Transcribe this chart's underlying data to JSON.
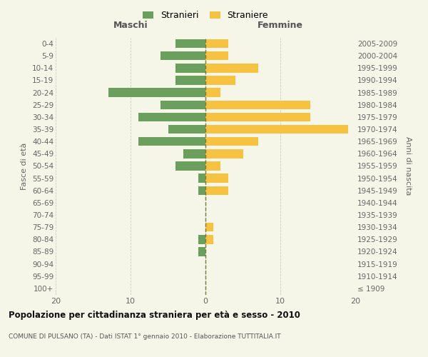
{
  "age_groups": [
    "100+",
    "95-99",
    "90-94",
    "85-89",
    "80-84",
    "75-79",
    "70-74",
    "65-69",
    "60-64",
    "55-59",
    "50-54",
    "45-49",
    "40-44",
    "35-39",
    "30-34",
    "25-29",
    "20-24",
    "15-19",
    "10-14",
    "5-9",
    "0-4"
  ],
  "birth_years": [
    "≤ 1909",
    "1910-1914",
    "1915-1919",
    "1920-1924",
    "1925-1929",
    "1930-1934",
    "1935-1939",
    "1940-1944",
    "1945-1949",
    "1950-1954",
    "1955-1959",
    "1960-1964",
    "1965-1969",
    "1970-1974",
    "1975-1979",
    "1980-1984",
    "1985-1989",
    "1990-1994",
    "1995-1999",
    "2000-2004",
    "2005-2009"
  ],
  "maschi": [
    0,
    0,
    0,
    1,
    1,
    0,
    0,
    0,
    1,
    1,
    4,
    3,
    9,
    5,
    9,
    6,
    13,
    4,
    4,
    6,
    4
  ],
  "femmine": [
    0,
    0,
    0,
    0,
    1,
    1,
    0,
    0,
    3,
    3,
    2,
    5,
    7,
    19,
    14,
    14,
    2,
    4,
    7,
    3,
    3
  ],
  "color_maschi": "#6a9f5e",
  "color_femmine": "#f5c242",
  "bg_color": "#f5f5e8",
  "title": "Popolazione per cittadinanza straniera per età e sesso - 2010",
  "subtitle": "COMUNE DI PULSANO (TA) - Dati ISTAT 1° gennaio 2010 - Elaborazione TUTTITALIA.IT",
  "label_maschi": "Maschi",
  "label_femmine": "Femmine",
  "ylabel_left": "Fasce di età",
  "ylabel_right": "Anni di nascita",
  "legend_stranieri": "Stranieri",
  "legend_straniere": "Straniere",
  "xlim": 20
}
